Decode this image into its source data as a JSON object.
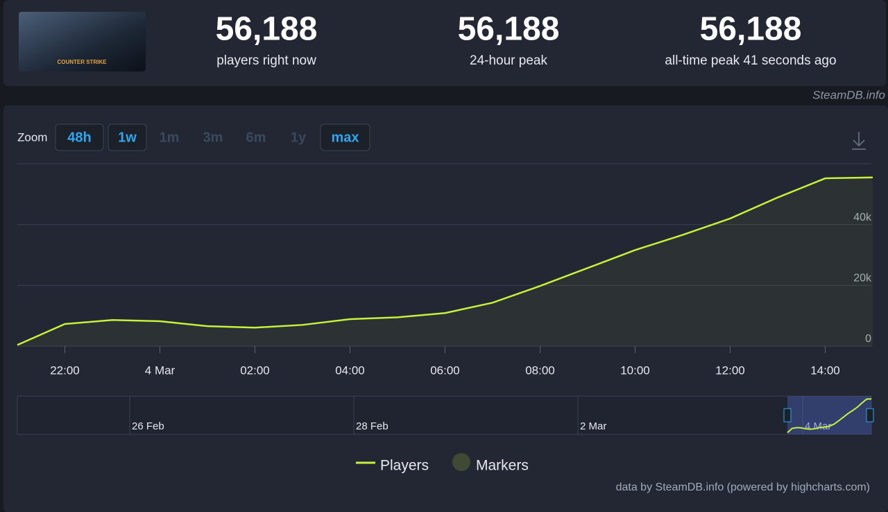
{
  "header": {
    "game_logo": "COUNTER STRIKE",
    "stats": [
      {
        "value": "56,188",
        "label": "players right now"
      },
      {
        "value": "56,188",
        "label": "24-hour peak"
      },
      {
        "value": "56,188",
        "label": "all-time peak 41 seconds ago"
      }
    ]
  },
  "watermark": "SteamDB.info",
  "zoom": {
    "label": "Zoom",
    "buttons": [
      {
        "text": "48h",
        "enabled": true
      },
      {
        "text": "1w",
        "enabled": true
      },
      {
        "text": "1m",
        "enabled": false
      },
      {
        "text": "3m",
        "enabled": false
      },
      {
        "text": "6m",
        "enabled": false
      },
      {
        "text": "1y",
        "enabled": false
      },
      {
        "text": "max",
        "enabled": true
      }
    ]
  },
  "chart_data": {
    "type": "line",
    "categories": [
      null,
      "22:00",
      null,
      "4 Mar",
      null,
      "02:00",
      null,
      "04:00",
      null,
      "06:00",
      null,
      "08:00",
      null,
      "10:00",
      null,
      "12:00",
      null,
      "14:00",
      null
    ],
    "series": [
      {
        "name": "Players",
        "color": "#c9f03a",
        "values": [
          400,
          7300,
          8600,
          8200,
          6600,
          6100,
          7000,
          8900,
          9500,
          10900,
          14300,
          19800,
          25700,
          31600,
          36600,
          42000,
          48900,
          55200,
          55500
        ]
      }
    ],
    "markers": {
      "name": "Markers",
      "color": "#3e4a33"
    },
    "ylim": [
      0,
      60000
    ],
    "yticks": [
      0,
      {
        "value": 20000,
        "label": "20k"
      },
      {
        "value": 40000,
        "label": "40k"
      }
    ],
    "grid": true,
    "navigator": {
      "labels": [
        "26 Feb",
        "28 Feb",
        "2 Mar",
        "4 Mar"
      ]
    },
    "credits": "data by SteamDB.info (powered by highcharts.com)"
  }
}
